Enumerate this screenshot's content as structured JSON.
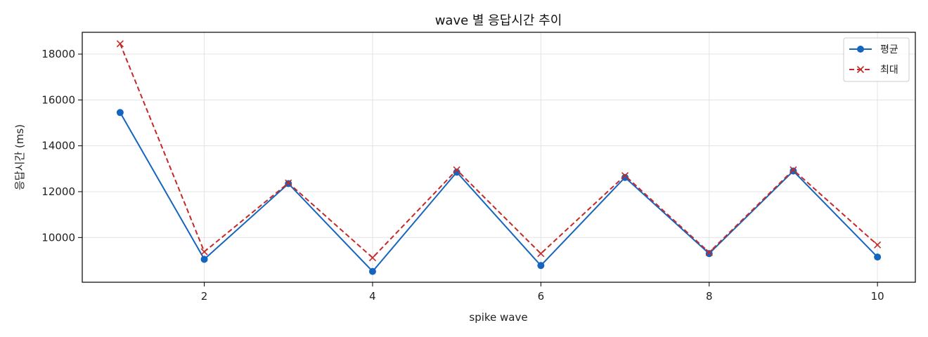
{
  "chart_data": {
    "type": "line",
    "title": "wave 별 응답시간 추이",
    "xlabel": "spike wave",
    "ylabel": "응답시간 (ms)",
    "x": [
      1,
      2,
      3,
      4,
      5,
      6,
      7,
      8,
      9,
      10
    ],
    "xticks": [
      2,
      4,
      6,
      8,
      10
    ],
    "yticks": [
      10000,
      12000,
      14000,
      16000,
      18000
    ],
    "xlim": [
      0.55,
      10.45
    ],
    "ylim": [
      8050,
      18950
    ],
    "grid": true,
    "legend_position": "top-right",
    "series": [
      {
        "name": "평균",
        "values": [
          15450,
          9050,
          12350,
          8520,
          12850,
          8780,
          12620,
          9300,
          12900,
          9150
        ],
        "color": "#1565c0",
        "line_style": "solid",
        "marker": "circle"
      },
      {
        "name": "최대",
        "values": [
          18450,
          9380,
          12380,
          9120,
          12950,
          9300,
          12700,
          9350,
          12950,
          9680
        ],
        "color": "#c62828",
        "line_style": "dashed",
        "marker": "x"
      }
    ]
  }
}
